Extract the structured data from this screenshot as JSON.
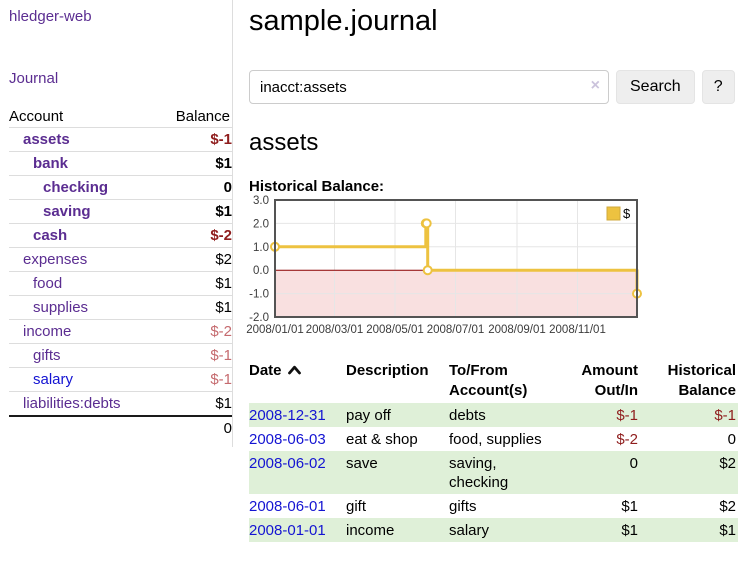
{
  "sidebar": {
    "brand": "hledger-web",
    "journal_link": "Journal",
    "accounts": {
      "col_account": "Account",
      "col_balance": "Balance",
      "rows": [
        {
          "name": "assets",
          "balance": "$-1",
          "depth": 1,
          "bold": true,
          "neg": "strong",
          "blue": false
        },
        {
          "name": "bank",
          "balance": "$1",
          "depth": 2,
          "bold": true,
          "neg": null,
          "blue": false
        },
        {
          "name": "checking",
          "balance": "0",
          "depth": 3,
          "bold": true,
          "neg": null,
          "blue": false
        },
        {
          "name": "saving",
          "balance": "$1",
          "depth": 3,
          "bold": true,
          "neg": null,
          "blue": false
        },
        {
          "name": "cash",
          "balance": "$-2",
          "depth": 2,
          "bold": true,
          "neg": "strong",
          "blue": false
        },
        {
          "name": "expenses",
          "balance": "$2",
          "depth": 1,
          "bold": false,
          "neg": null,
          "blue": false
        },
        {
          "name": "food",
          "balance": "$1",
          "depth": 2,
          "bold": false,
          "neg": null,
          "blue": false
        },
        {
          "name": "supplies",
          "balance": "$1",
          "depth": 2,
          "bold": false,
          "neg": null,
          "blue": false
        },
        {
          "name": "income",
          "balance": "$-2",
          "depth": 1,
          "bold": false,
          "neg": "soft",
          "blue": false
        },
        {
          "name": "gifts",
          "balance": "$-1",
          "depth": 2,
          "bold": false,
          "neg": "soft",
          "blue": false
        },
        {
          "name": "salary",
          "balance": "$-1",
          "depth": 2,
          "bold": false,
          "neg": "soft",
          "blue": true
        },
        {
          "name": "liabilities:debts",
          "balance": "$1",
          "depth": 1,
          "bold": false,
          "neg": null,
          "blue": false
        }
      ],
      "total": "0"
    }
  },
  "main": {
    "title": "sample.journal",
    "account_heading": "assets",
    "chart_title": "Historical Balance:"
  },
  "search": {
    "value": "inacct:assets",
    "clear_icon": "×",
    "search_button": "Search",
    "help_button": "?"
  },
  "chart_data": {
    "type": "line",
    "title": "Historical Balance:",
    "x": [
      "2008-01-01",
      "2008-06-01",
      "2008-06-02",
      "2008-06-03",
      "2008-12-31"
    ],
    "series": [
      {
        "name": "$",
        "color": "#edc240",
        "values": [
          1,
          2,
          2,
          0,
          -1
        ]
      }
    ],
    "step": true,
    "markers": true,
    "xlim": [
      "2008-01-01",
      "2008-12-31"
    ],
    "ylim": [
      -2,
      3
    ],
    "y_ticks": [
      "3.0",
      "2.0",
      "1.0",
      "0.0",
      "-1.0",
      "-2.0"
    ],
    "x_ticks": [
      {
        "date": "2008-01-01",
        "label": "2008/01/01"
      },
      {
        "date": "2008-03-01",
        "label": "2008/03/01"
      },
      {
        "date": "2008-05-01",
        "label": "2008/05/01"
      },
      {
        "date": "2008-07-01",
        "label": "2008/07/01"
      },
      {
        "date": "2008-09-01",
        "label": "2008/09/01"
      },
      {
        "date": "2008-11-01",
        "label": "2008/11/01"
      }
    ],
    "grid": true,
    "legend": {
      "position": "top-right",
      "label": "$"
    },
    "zero_line_color": "#8b0000",
    "negative_fill": "#f9e0e0",
    "grid_color": "#e6e6e6",
    "border_color": "#545454",
    "tick_label_color": "#3c3c3c"
  },
  "register": {
    "headers": {
      "date": "Date",
      "description": "Description",
      "accounts": "To/From Account(s)",
      "amount": "Amount Out/In",
      "balance": "Historical Balance"
    },
    "sort_icon": "chevron-up",
    "rows": [
      {
        "date": "2008-12-31",
        "description": "pay off",
        "accounts": "debts",
        "amount": "$-1",
        "balance": "$-1",
        "amount_neg": true,
        "balance_neg": true,
        "green": true
      },
      {
        "date": "2008-06-03",
        "description": "eat & shop",
        "accounts": "food, supplies",
        "amount": "$-2",
        "balance": "0",
        "amount_neg": true,
        "balance_neg": false,
        "green": false
      },
      {
        "date": "2008-06-02",
        "description": "save",
        "accounts": "saving, checking",
        "amount": "0",
        "balance": "$2",
        "amount_neg": false,
        "balance_neg": false,
        "green": true
      },
      {
        "date": "2008-06-01",
        "description": "gift",
        "accounts": "gifts",
        "amount": "$1",
        "balance": "$2",
        "amount_neg": false,
        "balance_neg": false,
        "green": false
      },
      {
        "date": "2008-01-01",
        "description": "income",
        "accounts": "salary",
        "amount": "$1",
        "balance": "$1",
        "amount_neg": false,
        "balance_neg": false,
        "green": true
      }
    ]
  },
  "colors": {
    "link_purple": "#5b2d91",
    "link_blue": "#1414d2",
    "negative_strong": "#8f1d1d",
    "negative_soft": "#c56a6e",
    "row_green": "#dff0d8",
    "accent_gold": "#edc240",
    "chart_negative_region": "#f9e0e0",
    "chart_zero_line": "#8b0000"
  }
}
